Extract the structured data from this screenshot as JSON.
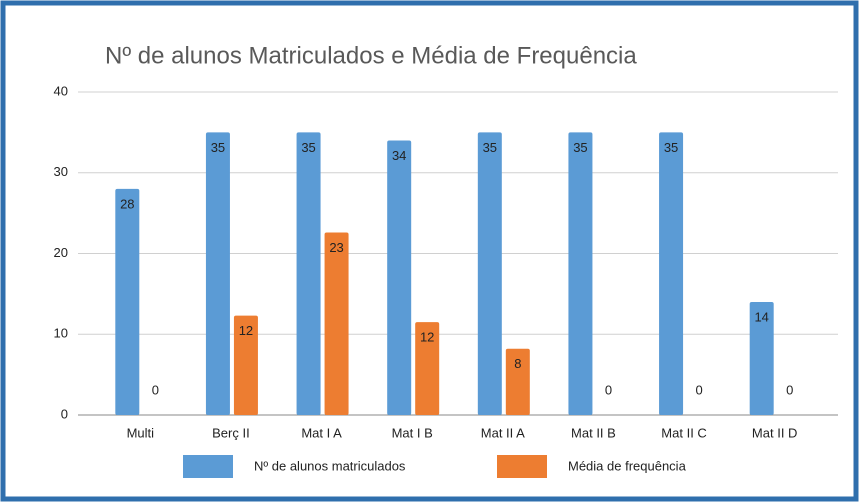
{
  "chart_data": {
    "type": "bar",
    "title": "Nº de alunos Matriculados e Média de Frequência",
    "categories": [
      "Multi",
      "Berç II",
      "Mat I A",
      "Mat I B",
      "Mat II A",
      "Mat II B",
      "Mat II C",
      "Mat II D"
    ],
    "series": [
      {
        "name": "Nº de alunos matriculados",
        "color": "#5b9bd5",
        "values": [
          28,
          35,
          35,
          34,
          35,
          35,
          35,
          14
        ]
      },
      {
        "name": "Média de frequência",
        "color": "#ed7d31",
        "values": [
          0,
          12.3,
          22.6,
          11.5,
          8.2,
          0,
          0,
          0
        ],
        "value_labels": [
          "0",
          "12",
          "23",
          "12",
          "8",
          "0",
          "0",
          "0"
        ]
      }
    ],
    "ylim": [
      0,
      40
    ],
    "yticks": [
      0,
      10,
      20,
      30,
      40
    ],
    "grid": true,
    "legend": "bottom"
  }
}
